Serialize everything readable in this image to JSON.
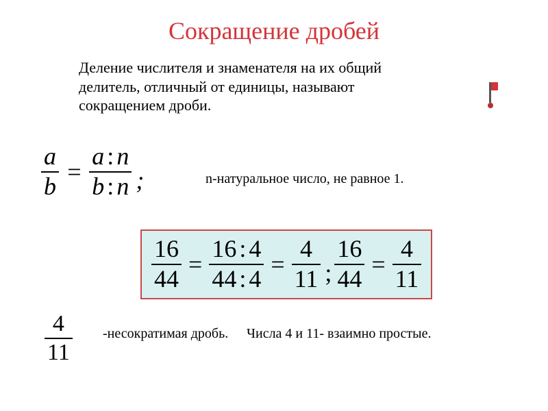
{
  "title": "Сокращение дробей",
  "definition": "Деление числителя и знаменателя на их общий делитель, отличный от единицы, называют сокращением дроби.",
  "formula": {
    "left_num": "a",
    "left_den": "b",
    "eq": "=",
    "right_num_a": "a",
    "right_num_op": ":",
    "right_num_b": "n",
    "right_den_a": "b",
    "right_den_op": ":",
    "right_den_b": "n",
    "semi": ";",
    "note": "n-натуральное число, не равное 1."
  },
  "example": {
    "f1_num": "16",
    "f1_den": "44",
    "eq1": "=",
    "f2_num_a": "16",
    "f2_num_op": ":",
    "f2_num_b": "4",
    "f2_den_a": "44",
    "f2_den_op": ":",
    "f2_den_b": "4",
    "eq2": "=",
    "f3_num": "4",
    "f3_den": "11",
    "semi": ";",
    "f4_num": "16",
    "f4_den": "44",
    "eq3": "=",
    "f5_num": "4",
    "f5_den": "11",
    "box_bg_color": "#d8f0f0",
    "box_border_color": "#c84848"
  },
  "irreducible": {
    "num": "4",
    "den": "11",
    "label": "-несократимая дробь."
  },
  "coprime_label": "Числа 4 и 11- взаимно простые.",
  "colors": {
    "title_color": "#d4343a",
    "text_color": "#000000",
    "background_color": "#ffffff"
  },
  "typography": {
    "title_fontsize": 36,
    "body_fontsize": 22,
    "note_fontsize": 20,
    "formula_fontsize": 36,
    "font_family": "Times New Roman"
  }
}
